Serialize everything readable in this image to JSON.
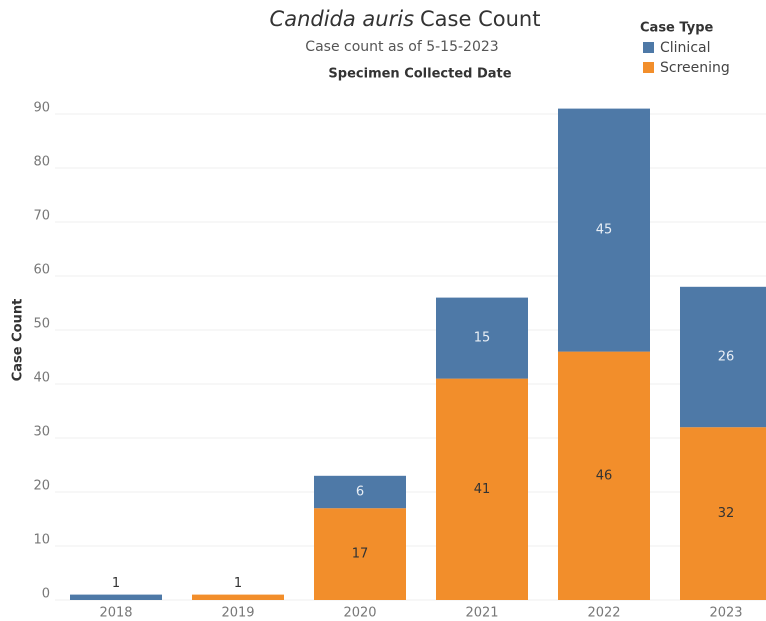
{
  "chart_data": {
    "type": "stacked_bar",
    "title_parts": [
      "Candida auris",
      "Case Count"
    ],
    "subtitle": "Case count as of 5-15-2023",
    "x_label": "Specimen Collected Date",
    "y_label": "Case Count",
    "legend_title": "Case Type",
    "legend_position": "top-right",
    "categories": [
      "2018",
      "2019",
      "2020",
      "2021",
      "2022",
      "2023"
    ],
    "series": [
      {
        "name": "Clinical",
        "color": "#4e79a7",
        "values": [
          1,
          0,
          6,
          15,
          45,
          26
        ]
      },
      {
        "name": "Screening",
        "color": "#f28e2b",
        "values": [
          0,
          1,
          17,
          41,
          46,
          32
        ]
      }
    ],
    "stack_order": [
      1,
      0
    ],
    "ylim": [
      0,
      95
    ],
    "yticks": [
      0,
      10,
      20,
      30,
      40,
      50,
      60,
      70,
      80,
      90
    ],
    "grid": true
  }
}
